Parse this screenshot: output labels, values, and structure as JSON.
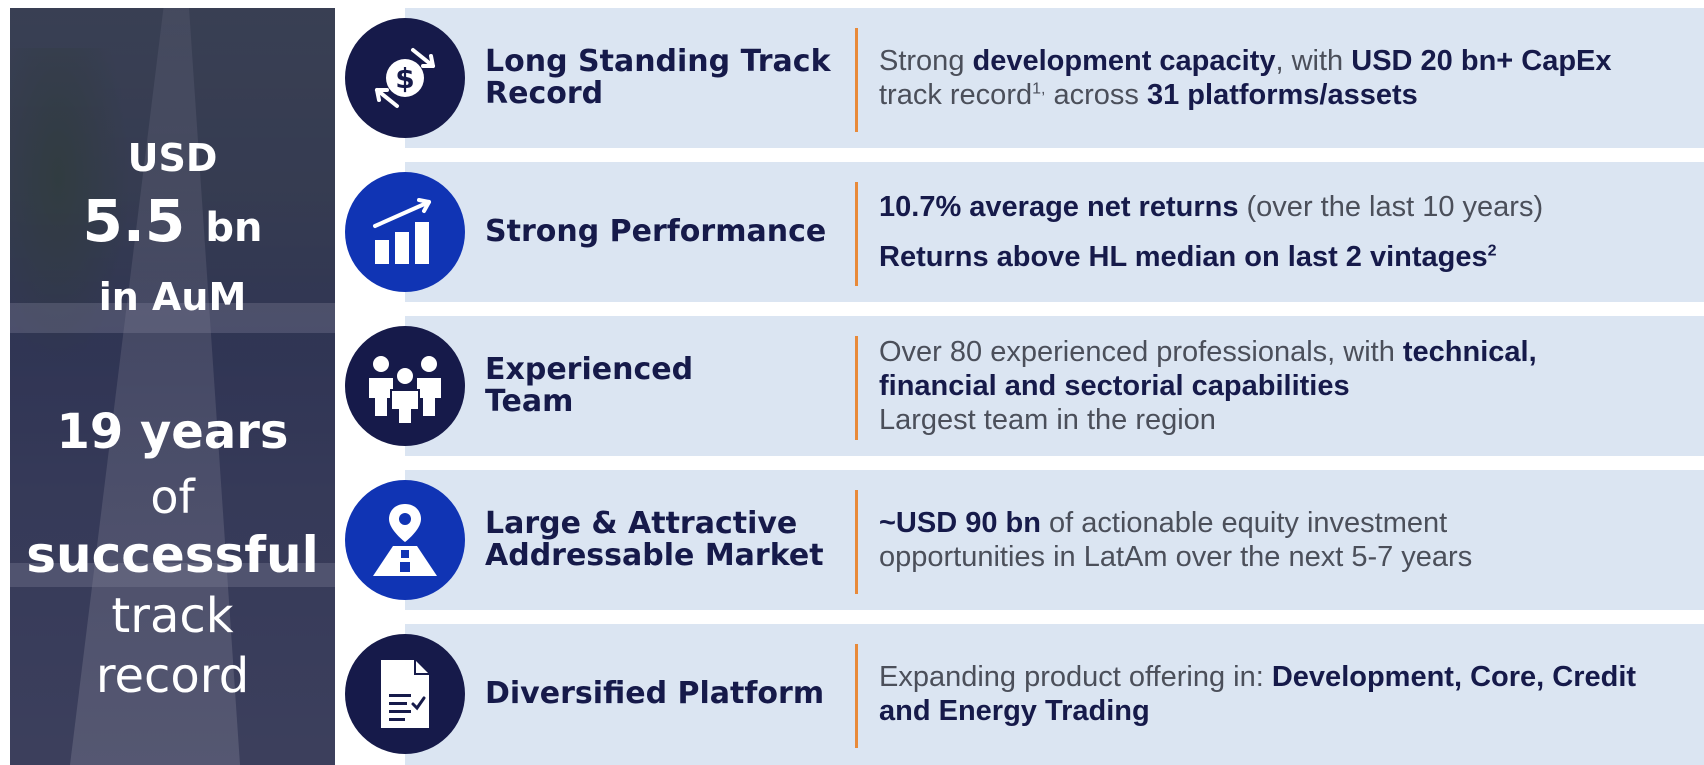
{
  "left_panel": {
    "aum_currency": "USD",
    "aum_value": "5.5",
    "aum_unit": "bn",
    "aum_suffix": "in AuM",
    "years_bold": "19 years",
    "years_of": "of",
    "years_successful": "successful",
    "years_track": "track",
    "years_record": "record"
  },
  "rows": [
    {
      "icon": "dollar-exchange-icon",
      "title": "Long Standing Track Record",
      "desc": [
        {
          "t": "Strong ",
          "b": false
        },
        {
          "t": "development capacity",
          "b": true
        },
        {
          "t": ", with ",
          "b": false
        },
        {
          "t": "USD 20 bn+ CapEx",
          "b": true
        },
        {
          "t": " track record",
          "b": false
        },
        {
          "t": "1,",
          "sup": true
        },
        {
          "t": " across ",
          "b": false
        },
        {
          "t": "31 platforms/assets",
          "b": true
        }
      ]
    },
    {
      "icon": "bar-chart-growth-icon",
      "title": "Strong Performance",
      "desc_line1_bold": "10.7% average net returns",
      "desc_line1_rest": " (over the last 10 years)",
      "desc_line2_bold": "Returns above HL median on last 2 vintages",
      "desc_line2_sup": "2"
    },
    {
      "icon": "team-people-icon",
      "title_line1": "Experienced",
      "title_line2": "Team",
      "desc_line1_rest": "Over 80 experienced professionals, with ",
      "desc_line1_bold": "technical,",
      "desc_line2_bold": "financial and sectorial capabilities",
      "desc_line3": "Largest team in the region"
    },
    {
      "icon": "map-pin-road-icon",
      "title_line1": "Large & Attractive",
      "title_line2": "Addressable Market",
      "desc_bold": "~USD 90 bn",
      "desc_rest": " of actionable equity investment opportunities in LatAm over the next 5-7 years"
    },
    {
      "icon": "document-checklist-icon",
      "title": "Diversified Platform",
      "desc_rest": "Expanding product offering in: ",
      "desc_bold": "Development, Core, Credit and Energy Trading"
    }
  ],
  "colors": {
    "navy": "#161a4a",
    "blue": "#1034b4",
    "row_bg": "#dbe5f2",
    "accent_orange": "#e88a3a"
  }
}
